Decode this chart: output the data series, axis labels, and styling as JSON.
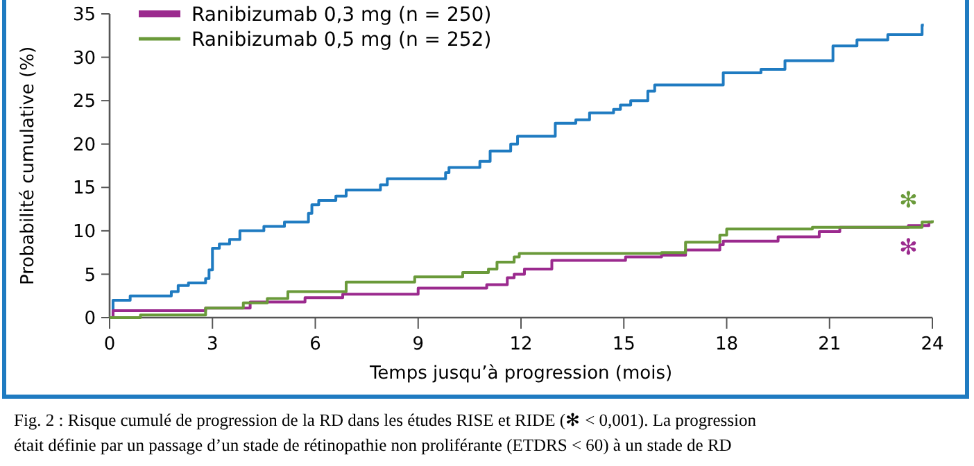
{
  "chart_data": {
    "type": "step",
    "xlabel": "Temps jusqu’à progression (mois)",
    "ylabel": "Probabilité cumulative (%)",
    "xlim": [
      0,
      24
    ],
    "xticks": [
      0,
      3,
      6,
      9,
      12,
      15,
      18,
      21,
      24
    ],
    "ylim": [
      0,
      35
    ],
    "yticks": [
      0,
      5,
      10,
      15,
      20,
      25,
      30,
      35
    ],
    "legend": "top left",
    "grid": false,
    "marker": "none",
    "line_style": "solid",
    "series": [
      {
        "color": "#1f7bc1",
        "x": [
          0,
          0.1,
          0.6,
          1.8,
          2,
          2.3,
          2.8,
          2.9,
          3,
          3.2,
          3.5,
          3.8,
          4.5,
          5.1,
          5.8,
          5.9,
          6.1,
          6.6,
          6.9,
          7.9,
          8.1,
          9.8,
          9.9,
          10.8,
          11.1,
          11.7,
          11.9,
          13,
          13.6,
          14,
          14.7,
          14.9,
          15.2,
          15.7,
          15.9,
          17.9,
          19,
          19.7,
          21.1,
          21.8,
          22.7,
          23.7,
          23.75
        ],
        "values": [
          0,
          2,
          2.5,
          3,
          3.7,
          4,
          4.5,
          5.5,
          8,
          8.5,
          9,
          10,
          10.5,
          11,
          12,
          13,
          13.5,
          14,
          14.7,
          15.3,
          16,
          16.7,
          17.3,
          18,
          19.2,
          20,
          20.9,
          22.4,
          22.8,
          23.6,
          24,
          24.5,
          25,
          26.1,
          26.8,
          28.2,
          28.6,
          29.6,
          31.3,
          32,
          32.6,
          33.7,
          33.7
        ]
      },
      {
        "name": "Ranibizumab 0,3 mg (n = 250)",
        "color": "#9b2a8e",
        "x": [
          0,
          0.1,
          2.8,
          4.1,
          5.7,
          6.8,
          9,
          11,
          11.6,
          11.8,
          12.1,
          12.9,
          15.05,
          16.1,
          16.8,
          17.8,
          17.9,
          19.5,
          20.7,
          21.3,
          23.3,
          23.9,
          24
        ],
        "values": [
          0,
          0.8,
          1.1,
          1.8,
          2.3,
          2.7,
          3.4,
          3.8,
          4.6,
          5,
          5.6,
          6.6,
          7,
          7.2,
          7.8,
          8.4,
          8.8,
          9.3,
          9.9,
          10.4,
          10.6,
          11,
          11
        ]
      },
      {
        "name": "Ranibizumab 0,5 mg (n = 252)",
        "color": "#6a9a3a",
        "x": [
          0,
          0.9,
          2.8,
          3.9,
          4.6,
          5.2,
          6.9,
          8.9,
          10.3,
          11.05,
          11.3,
          11.8,
          11.95,
          16.1,
          16.8,
          17.8,
          18,
          20.5,
          23.7,
          24
        ],
        "values": [
          0,
          0.3,
          1.1,
          1.7,
          2.2,
          3,
          4.1,
          4.7,
          5.2,
          5.6,
          6.4,
          7,
          7.4,
          7.5,
          8.7,
          9.5,
          10.2,
          10.4,
          11,
          11.2
        ]
      }
    ],
    "annotations": [
      "✻",
      "✻",
      "Fig. 2 : Risque cumulé de progression de la RD dans les études RISE et RIDE (✻ < 0,001). La progression était définie par un passage d’un stade de rétinopathie non proliférante (ETDRS < 60) à un stade de RD"
    ]
  }
}
